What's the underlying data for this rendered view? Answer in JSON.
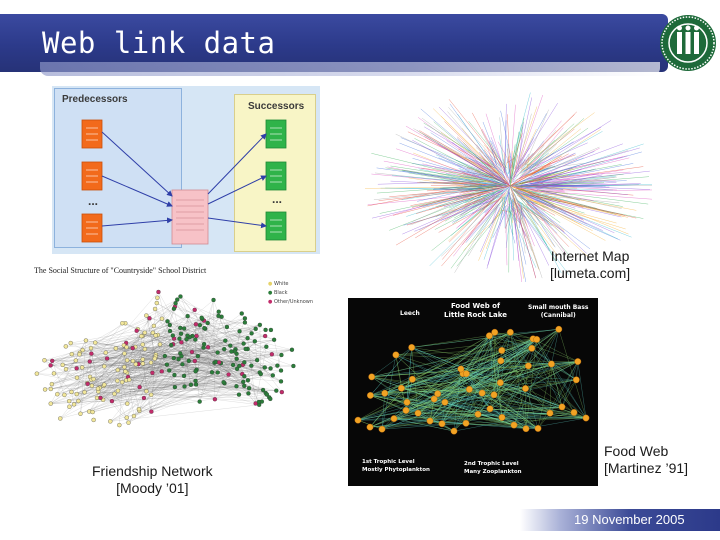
{
  "slide": {
    "title": "Web link data",
    "date": "19 November 2005"
  },
  "pred_succ": {
    "predecessors_label": "Predecessors",
    "successors_label": "Successors",
    "ellipsis": "..."
  },
  "internet_map": {
    "caption_line1": "Internet Map",
    "caption_line2": "[lumeta.com]"
  },
  "friendship": {
    "figure_title": "The Social Structure of \"Countryside\" School District",
    "legend": [
      "White",
      "Black",
      "Other/Unknown"
    ],
    "caption_line1": "Friendship Network",
    "caption_line2": "[Moody ’01]"
  },
  "food_web": {
    "figure_title_line1": "Food Web of",
    "figure_title_line2": "Little Rock Lake",
    "label_leech": "Leech",
    "label_bass_line1": "Small mouth Bass",
    "label_bass_line2": "(Cannibal)",
    "label_level1_line1": "1st Trophic Level",
    "label_level1_line2": "Mostly Phytoplankton",
    "label_level2_line1": "2nd Trophic Level",
    "label_level2_line2": "Many Zooplankton",
    "caption_line1": "Food Web",
    "caption_line2": "[Martinez ’91]"
  },
  "colors": {
    "title_blue": "#2c3a8a",
    "predecessor_box": "#f26a1b",
    "successor_box": "#2fb34a",
    "center_box": "#f7c2c7",
    "arrow": "#2f3fa8"
  },
  "icons": {
    "logo": "university-seal-icon"
  }
}
